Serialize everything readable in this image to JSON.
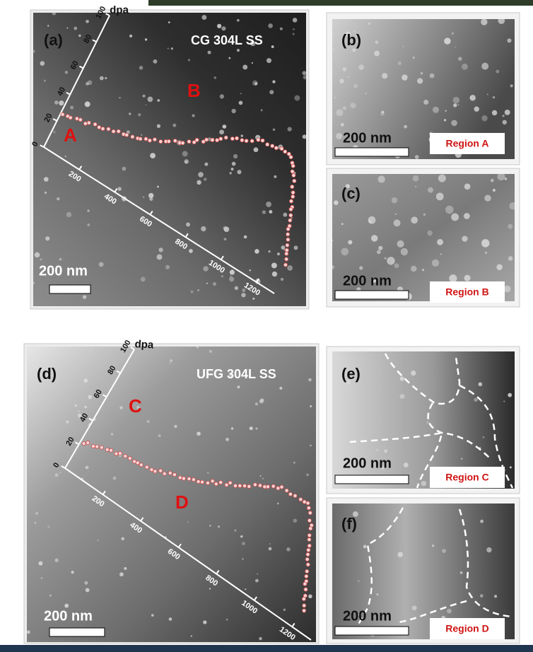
{
  "panels": [
    {
      "label": "(a)",
      "title": "CG 304L SS",
      "regions": [
        "A",
        "B"
      ],
      "scale_bar": "200 nm",
      "axis_label": "dpa",
      "dpa_ticks": [
        0,
        20,
        40,
        60,
        80,
        100
      ],
      "depth_ticks": [
        200,
        400,
        600,
        800,
        1000,
        1200
      ]
    },
    {
      "label": "(b)",
      "scale_bar": "200 nm",
      "region_tag": "Region A"
    },
    {
      "label": "(c)",
      "scale_bar": "200 nm",
      "region_tag": "Region B"
    },
    {
      "label": "(d)",
      "title": "UFG 304L SS",
      "regions": [
        "C",
        "D"
      ],
      "scale_bar": "200 nm",
      "axis_label": "dpa",
      "dpa_ticks": [
        0,
        20,
        40,
        60,
        80,
        100
      ],
      "depth_ticks": [
        200,
        400,
        600,
        800,
        1000,
        1200
      ]
    },
    {
      "label": "(e)",
      "scale_bar": "200 nm",
      "region_tag": "Region C"
    },
    {
      "label": "(f)",
      "scale_bar": "200 nm",
      "region_tag": "Region D"
    }
  ]
}
